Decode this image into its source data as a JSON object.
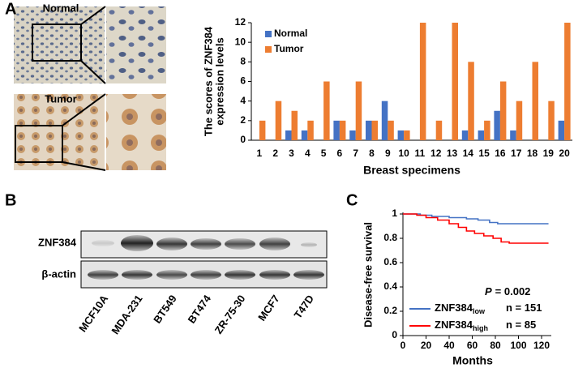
{
  "panels": {
    "a": "A",
    "b": "B",
    "c": "C"
  },
  "images": {
    "normal": "Normal",
    "tumor": "Tumor"
  },
  "blot": {
    "rows": [
      "ZNF384",
      "β-actin"
    ],
    "lanes": [
      "MCF10A",
      "MDA-231",
      "BT549",
      "BT474",
      "ZR-75-30",
      "MCF7",
      "T47D"
    ]
  },
  "chart_data": [
    {
      "type": "bar",
      "ylabel": [
        "The scores of ZNF384",
        "expression levels"
      ],
      "xlabel": "Breast specimens",
      "categories": [
        "1",
        "2",
        "3",
        "4",
        "5",
        "6",
        "7",
        "8",
        "9",
        "10",
        "11",
        "12",
        "13",
        "14",
        "15",
        "16",
        "17",
        "18",
        "19",
        "20"
      ],
      "series": [
        {
          "name": "Normal",
          "color": "#4472c4",
          "values": [
            0,
            0,
            1,
            1,
            0,
            2,
            1,
            2,
            4,
            1,
            0,
            0,
            0,
            1,
            1,
            3,
            1,
            0,
            0,
            2
          ]
        },
        {
          "name": "Tumor",
          "color": "#ed7d31",
          "values": [
            2,
            4,
            3,
            2,
            6,
            2,
            6,
            2,
            2,
            1,
            12,
            2,
            12,
            8,
            2,
            6,
            4,
            8,
            4,
            12
          ]
        }
      ],
      "ylim": [
        0,
        12
      ],
      "yticks": [
        0,
        2,
        4,
        6,
        8,
        10,
        12
      ],
      "legend": "upper left",
      "grid": false
    },
    {
      "type": "line",
      "ylabel": "Disease-free survival",
      "xlabel": "Months",
      "annotation": {
        "p": "P",
        "text": "= 0.002"
      },
      "series": [
        {
          "name": "ZNF384",
          "subscript": "low",
          "n_label": "n = 151",
          "color": "#4472c4",
          "x": [
            0,
            15,
            15,
            25,
            25,
            40,
            40,
            55,
            55,
            65,
            65,
            75,
            75,
            82,
            82,
            126
          ],
          "values": [
            1,
            1,
            0.99,
            0.99,
            0.98,
            0.98,
            0.97,
            0.97,
            0.96,
            0.96,
            0.95,
            0.95,
            0.93,
            0.93,
            0.92,
            0.92
          ]
        },
        {
          "name": "ZNF384",
          "subscript": "high",
          "n_label": "n = 85",
          "color": "#ff0000",
          "x": [
            0,
            12,
            12,
            20,
            20,
            30,
            30,
            40,
            40,
            48,
            48,
            55,
            55,
            62,
            62,
            70,
            70,
            78,
            78,
            85,
            85,
            92,
            92,
            126
          ],
          "values": [
            1,
            1,
            0.99,
            0.99,
            0.97,
            0.97,
            0.95,
            0.95,
            0.92,
            0.92,
            0.89,
            0.89,
            0.86,
            0.86,
            0.84,
            0.84,
            0.82,
            0.82,
            0.8,
            0.8,
            0.77,
            0.77,
            0.76,
            0.76
          ]
        }
      ],
      "xlim": [
        0,
        128
      ],
      "xticks": [
        0,
        20,
        40,
        60,
        80,
        100,
        120
      ],
      "ylim": [
        0,
        1
      ],
      "yticks": [
        0,
        0.2,
        0.4,
        0.6,
        0.8,
        1
      ],
      "legend": "lower left",
      "grid": false
    }
  ]
}
